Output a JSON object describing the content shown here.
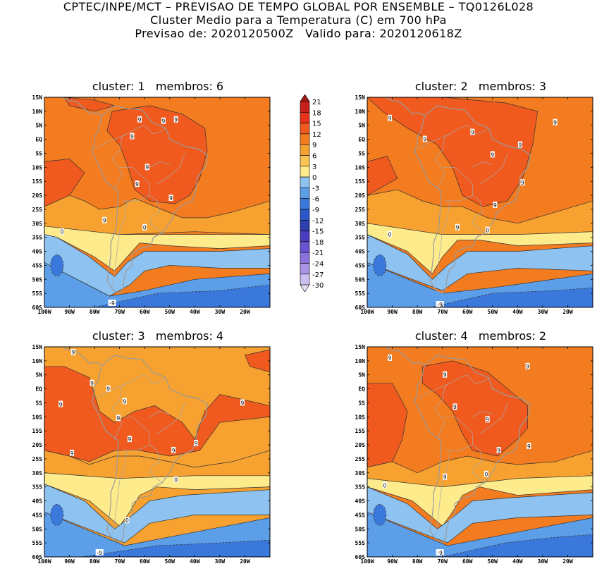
{
  "header": {
    "line1": "CPTEC/INPE/MCT – PREVISAO DE TEMPO GLOBAL POR ENSEMBLE – TQ0126L028",
    "line2": "Cluster Medio para a Temperatura (C) em 700 hPa",
    "line3": "Previsao de: 2020120500Z   Valido para: 2020120618Z"
  },
  "lat_labels": [
    "15N",
    "10N",
    "5N",
    "EQ",
    "5S",
    "10S",
    "15S",
    "20S",
    "25S",
    "30S",
    "35S",
    "40S",
    "45S",
    "50S",
    "55S",
    "60S"
  ],
  "lon_labels": [
    "100W",
    "90W",
    "80W",
    "70W",
    "60W",
    "50W",
    "40W",
    "30W",
    "20W"
  ],
  "colorbar": {
    "levels": [
      "21",
      "18",
      "15",
      "12",
      "9",
      "6",
      "3",
      "0",
      "-3",
      "-6",
      "-9",
      "-12",
      "-15",
      "-18",
      "-21",
      "-24",
      "-27",
      "-30"
    ],
    "colors": [
      "#a01818",
      "#c8201a",
      "#e8321c",
      "#f05a1e",
      "#f47c20",
      "#f7a230",
      "#fbc453",
      "#fdeb8c",
      "#8ec2f0",
      "#5c9ee8",
      "#3b78dc",
      "#2a58c8",
      "#2e3fb0",
      "#4b3cc0",
      "#6a52d0",
      "#8a72dc",
      "#a996e6",
      "#cbbef0",
      "#e8e2f8"
    ]
  },
  "panels": [
    {
      "title": "cluster: 1   membros: 6",
      "contour_labels": [
        {
          "text": "9",
          "lon": -52.5,
          "lat": 6.5
        },
        {
          "text": "9",
          "lon": -62,
          "lat": 7
        },
        {
          "text": "9",
          "lon": -47.5,
          "lat": 7
        },
        {
          "text": "9",
          "lon": -65,
          "lat": 1
        },
        {
          "text": "9",
          "lon": -59,
          "lat": -10
        },
        {
          "text": "9",
          "lon": -63,
          "lat": -16
        },
        {
          "text": "9",
          "lon": -49.5,
          "lat": -21
        },
        {
          "text": "9",
          "lon": -76,
          "lat": -29
        },
        {
          "text": "0",
          "lon": -93,
          "lat": -33
        },
        {
          "text": "0",
          "lon": -60,
          "lat": -31.5
        },
        {
          "text": "-9",
          "lon": -73,
          "lat": -58.5
        }
      ]
    },
    {
      "title": "cluster: 2   membros: 3",
      "contour_labels": [
        {
          "text": "9",
          "lon": -91,
          "lat": 7.5
        },
        {
          "text": "9",
          "lon": -77,
          "lat": 0
        },
        {
          "text": "9",
          "lon": -58,
          "lat": 2.5
        },
        {
          "text": "9",
          "lon": -39,
          "lat": -2
        },
        {
          "text": "9",
          "lon": -25,
          "lat": 6
        },
        {
          "text": "9",
          "lon": -50,
          "lat": -5.5
        },
        {
          "text": "9",
          "lon": -38,
          "lat": -15.5
        },
        {
          "text": "9",
          "lon": -49,
          "lat": -23.5
        },
        {
          "text": "9",
          "lon": -64,
          "lat": -31.5
        },
        {
          "text": "0",
          "lon": -91,
          "lat": -34
        },
        {
          "text": "0",
          "lon": -52,
          "lat": -32.5
        },
        {
          "text": "-9",
          "lon": -71,
          "lat": -59
        }
      ]
    },
    {
      "title": "cluster: 3   membros: 4",
      "contour_labels": [
        {
          "text": "9",
          "lon": -88.5,
          "lat": 13
        },
        {
          "text": "9",
          "lon": -81,
          "lat": 2
        },
        {
          "text": "9",
          "lon": -74.5,
          "lat": 0
        },
        {
          "text": "9",
          "lon": -68,
          "lat": -4.5
        },
        {
          "text": "9",
          "lon": -93.5,
          "lat": -5.5
        },
        {
          "text": "9",
          "lon": -70.5,
          "lat": -10.5
        },
        {
          "text": "9",
          "lon": -66,
          "lat": -18
        },
        {
          "text": "9",
          "lon": -21,
          "lat": -5
        },
        {
          "text": "9",
          "lon": -39.5,
          "lat": -19.5
        },
        {
          "text": "9",
          "lon": -89,
          "lat": -23
        },
        {
          "text": "9",
          "lon": -48.5,
          "lat": -22
        },
        {
          "text": "0",
          "lon": -47.5,
          "lat": -32.5
        },
        {
          "text": "0",
          "lon": -67,
          "lat": -47
        },
        {
          "text": "-9",
          "lon": -78,
          "lat": -58.5
        }
      ]
    },
    {
      "title": "cluster: 4   membros: 2",
      "contour_labels": [
        {
          "text": "9",
          "lon": -91,
          "lat": 11
        },
        {
          "text": "9",
          "lon": -36,
          "lat": 8
        },
        {
          "text": "9",
          "lon": -69,
          "lat": 5
        },
        {
          "text": "9",
          "lon": -65,
          "lat": -6.5
        },
        {
          "text": "9",
          "lon": -52,
          "lat": -11
        },
        {
          "text": "9",
          "lon": -47.5,
          "lat": -22
        },
        {
          "text": "9",
          "lon": -35.5,
          "lat": -20.5
        },
        {
          "text": "9",
          "lon": -69,
          "lat": -31.5
        },
        {
          "text": "0",
          "lon": -93,
          "lat": -34.5
        },
        {
          "text": "0",
          "lon": -52.5,
          "lat": -30.5
        },
        {
          "text": "-9",
          "lon": -71,
          "lat": -58.5
        }
      ]
    }
  ]
}
